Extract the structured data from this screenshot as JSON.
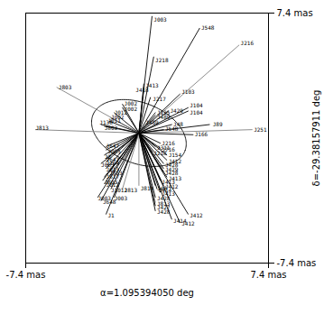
{
  "chart_data": {
    "type": "segments",
    "xlabel": "α=1.095394050 deg",
    "ylabel": "δ=-29.38157911 deg",
    "xlim": [
      -7.4,
      7.4
    ],
    "ylim": [
      -7.4,
      7.4
    ],
    "xticks": [
      {
        "value": -7.4,
        "label": "-7.4 mas"
      },
      {
        "value": 7.4,
        "label": "7.4 mas"
      }
    ],
    "yticks": [
      {
        "value": -7.4,
        "label": "-7.4 mas"
      },
      {
        "value": 7.4,
        "label": "7.4 mas"
      }
    ],
    "grid": false,
    "background_color": "#ffffff",
    "ellipse": {
      "cx": -0.5,
      "cy": 0.3,
      "a": 3.0,
      "b": 1.8,
      "angle_deg": -20,
      "color": "black"
    },
    "segments": [
      {
        "x1": -0.5,
        "y1": 0.3,
        "x2": 0.3,
        "y2": 7.2,
        "label": "J003",
        "label_x": 0.4,
        "label_y": 7.0,
        "color": "black"
      },
      {
        "x1": -0.5,
        "y1": 0.3,
        "x2": 0.4,
        "y2": 4.8,
        "label": "J218",
        "label_x": 0.5,
        "label_y": 4.6,
        "color": "black"
      },
      {
        "x1": -0.5,
        "y1": 0.3,
        "x2": -0.2,
        "y2": 3.2,
        "label": "J413",
        "label_x": -0.1,
        "label_y": 3.1,
        "color": "black"
      },
      {
        "x1": -0.5,
        "y1": 0.3,
        "x2": -0.2,
        "y2": 3.0,
        "label": "J418",
        "label_x": -0.7,
        "label_y": 2.85,
        "color": "black"
      },
      {
        "x1": -0.5,
        "y1": 0.3,
        "x2": 0.2,
        "y2": 2.4,
        "label": "J217",
        "label_x": 0.35,
        "label_y": 2.3,
        "color": "black"
      },
      {
        "x1": -0.5,
        "y1": 0.3,
        "x2": -1.5,
        "y2": 2.0,
        "label": "J002",
        "label_x": -1.4,
        "label_y": 2.0,
        "color": "black"
      },
      {
        "x1": -0.5,
        "y1": 0.3,
        "x2": -1.5,
        "y2": 1.8,
        "label": "J002",
        "label_x": -1.4,
        "label_y": 1.7,
        "color": "black"
      },
      {
        "x1": -0.5,
        "y1": 0.3,
        "x2": -2.0,
        "y2": 1.5,
        "label": "J012",
        "label_x": -2.0,
        "label_y": 1.5,
        "color": "black"
      },
      {
        "x1": -0.5,
        "y1": 0.3,
        "x2": -2.2,
        "y2": 1.2,
        "label": "J002",
        "label_x": -2.2,
        "label_y": 1.2,
        "color": "black"
      },
      {
        "x1": -0.5,
        "y1": 0.3,
        "x2": -2.3,
        "y2": 1.0,
        "label": "J011",
        "label_x": -2.4,
        "label_y": 1.0,
        "color": "black"
      },
      {
        "x1": -0.5,
        "y1": 0.3,
        "x2": 1.3,
        "y2": 1.6,
        "label": "J429",
        "label_x": 1.4,
        "label_y": 1.6,
        "color": "black"
      },
      {
        "x1": -0.5,
        "y1": 0.3,
        "x2": 2.0,
        "y2": 2.6,
        "label": "J103",
        "label_x": 2.1,
        "label_y": 2.7,
        "color": "black"
      },
      {
        "x1": -0.5,
        "y1": 0.3,
        "x2": 2.5,
        "y2": 1.8,
        "label": "J104",
        "label_x": 2.6,
        "label_y": 1.9,
        "color": "black"
      },
      {
        "x1": -0.5,
        "y1": 0.3,
        "x2": 2.5,
        "y2": 1.6,
        "label": "J104",
        "label_x": 2.6,
        "label_y": 1.5,
        "color": "black"
      },
      {
        "x1": -0.5,
        "y1": 0.3,
        "x2": 1.5,
        "y2": 0.8,
        "label": "J48",
        "label_x": 1.6,
        "label_y": 0.8,
        "color": "black"
      },
      {
        "x1": -0.5,
        "y1": 0.3,
        "x2": 3.8,
        "y2": 0.8,
        "label": "J89",
        "label_x": 4.0,
        "label_y": 0.8,
        "color": "black"
      },
      {
        "x1": -0.5,
        "y1": 0.3,
        "x2": 6.4,
        "y2": 0.5,
        "label": "J251",
        "label_x": 6.5,
        "label_y": 0.5,
        "color": "gray"
      },
      {
        "x1": -0.5,
        "y1": 0.3,
        "x2": 5.6,
        "y2": 5.5,
        "label": "J216",
        "label_x": 5.7,
        "label_y": 5.6,
        "color": "gray"
      },
      {
        "x1": -0.5,
        "y1": 0.3,
        "x2": 3.2,
        "y2": 6.5,
        "label": "J548",
        "label_x": 3.3,
        "label_y": 6.5,
        "color": "black"
      },
      {
        "x1": -0.5,
        "y1": 0.3,
        "x2": -5.5,
        "y2": 3.0,
        "label": "J803",
        "label_x": -5.4,
        "label_y": 3.0,
        "color": "gray"
      },
      {
        "x1": -0.5,
        "y1": 0.3,
        "x2": -6.8,
        "y2": 0.5,
        "label": "J813",
        "label_x": -6.8,
        "label_y": 0.6,
        "color": "gray"
      },
      {
        "x1": -0.5,
        "y1": 0.3,
        "x2": -2.8,
        "y2": 0.8,
        "label": "J138",
        "label_x": -2.9,
        "label_y": 0.9,
        "color": "black"
      },
      {
        "x1": -0.5,
        "y1": 0.3,
        "x2": -2.6,
        "y2": 0.7,
        "label": "J803",
        "label_x": -2.6,
        "label_y": 0.6,
        "color": "black"
      },
      {
        "x1": -0.5,
        "y1": 0.3,
        "x2": -2.5,
        "y2": -0.5,
        "label": "J647",
        "label_x": -2.5,
        "label_y": -0.5,
        "color": "black"
      },
      {
        "x1": -0.5,
        "y1": 0.3,
        "x2": -2.5,
        "y2": -0.7,
        "label": "J005",
        "label_x": -2.4,
        "label_y": -0.8,
        "color": "black"
      },
      {
        "x1": -0.5,
        "y1": 0.3,
        "x2": -2.6,
        "y2": -1.0,
        "label": "J2",
        "label_x": -2.6,
        "label_y": -1.1,
        "color": "black"
      },
      {
        "x1": -0.5,
        "y1": 0.3,
        "x2": -2.5,
        "y2": -1.2,
        "label": "J647",
        "label_x": -2.5,
        "label_y": -1.3,
        "color": "black"
      },
      {
        "x1": -0.5,
        "y1": 0.3,
        "x2": -2.5,
        "y2": -1.4,
        "label": "J164",
        "label_x": -2.5,
        "label_y": -1.5,
        "color": "black"
      },
      {
        "x1": -0.5,
        "y1": 0.3,
        "x2": -2.8,
        "y2": -1.5,
        "label": "J063",
        "label_x": -2.8,
        "label_y": -1.6,
        "color": "black"
      },
      {
        "x1": -0.5,
        "y1": 0.3,
        "x2": -2.5,
        "y2": -1.8,
        "label": "J013",
        "label_x": -2.5,
        "label_y": -1.9,
        "color": "black"
      },
      {
        "x1": -0.5,
        "y1": 0.3,
        "x2": -2.3,
        "y2": -2.0,
        "label": "J863",
        "label_x": -2.3,
        "label_y": -2.1,
        "color": "black"
      },
      {
        "x1": -0.5,
        "y1": 0.3,
        "x2": -2.6,
        "y2": -2.3,
        "label": "J817",
        "label_x": -2.5,
        "label_y": -2.3,
        "color": "black"
      },
      {
        "x1": -0.5,
        "y1": 0.3,
        "x2": -2.7,
        "y2": -2.5,
        "label": "J803",
        "label_x": -2.6,
        "label_y": -2.6,
        "color": "black"
      },
      {
        "x1": -0.5,
        "y1": 0.3,
        "x2": -2.6,
        "y2": -2.7,
        "label": "J012",
        "label_x": -2.5,
        "label_y": -2.8,
        "color": "black"
      },
      {
        "x1": -0.5,
        "y1": 0.3,
        "x2": -3.0,
        "y2": -3.5,
        "label": "J003",
        "label_x": -3.0,
        "label_y": -3.6,
        "color": "black"
      },
      {
        "x1": -0.5,
        "y1": 0.3,
        "x2": -2.8,
        "y2": -3.7,
        "label": "J648",
        "label_x": -2.7,
        "label_y": -3.8,
        "color": "black"
      },
      {
        "x1": -0.5,
        "y1": 0.3,
        "x2": -2.5,
        "y2": -4.5,
        "label": "J1",
        "label_x": -2.4,
        "label_y": -4.6,
        "color": "black"
      },
      {
        "x1": -0.5,
        "y1": 0.3,
        "x2": -2.0,
        "y2": -3.5,
        "label": "J003",
        "label_x": -2.0,
        "label_y": -3.6,
        "color": "black"
      },
      {
        "x1": -0.5,
        "y1": 0.3,
        "x2": -2.2,
        "y2": -3.0,
        "label": "J1012",
        "label_x": -2.2,
        "label_y": -3.1,
        "color": "black"
      },
      {
        "x1": -0.5,
        "y1": 0.3,
        "x2": -1.5,
        "y2": -3.0,
        "label": "J813",
        "label_x": -1.4,
        "label_y": -3.1,
        "color": "gray"
      },
      {
        "x1": -0.5,
        "y1": 0.3,
        "x2": -0.5,
        "y2": -2.8,
        "label": "J814",
        "label_x": -0.4,
        "label_y": -3.0,
        "color": "gray"
      },
      {
        "x1": -0.5,
        "y1": 0.3,
        "x2": 0.5,
        "y2": -2.8,
        "label": "J48",
        "label_x": 0.6,
        "label_y": -3.0,
        "color": "black"
      },
      {
        "x1": -0.5,
        "y1": 0.3,
        "x2": 0.3,
        "y2": -0.8,
        "label": "J218",
        "label_x": 0.4,
        "label_y": -0.9,
        "color": "black"
      },
      {
        "x1": -0.5,
        "y1": 0.3,
        "x2": 0.5,
        "y2": -0.5,
        "label": "J311",
        "label_x": 0.6,
        "label_y": -0.6,
        "color": "black"
      },
      {
        "x1": -0.5,
        "y1": 0.3,
        "x2": 0.8,
        "y2": -0.3,
        "label": "J216",
        "label_x": 0.9,
        "label_y": -0.3,
        "color": "black"
      },
      {
        "x1": -0.5,
        "y1": 0.3,
        "x2": 0.8,
        "y2": -0.6,
        "label": "J716",
        "label_x": 0.9,
        "label_y": -0.7,
        "color": "black"
      },
      {
        "x1": -0.5,
        "y1": 0.3,
        "x2": 1.2,
        "y2": -1.0,
        "label": "J154",
        "label_x": 1.3,
        "label_y": -1.0,
        "color": "black"
      },
      {
        "x1": -0.5,
        "y1": 0.3,
        "x2": 1.2,
        "y2": -1.3,
        "label": "J412",
        "label_x": 1.3,
        "label_y": -1.4,
        "color": "black"
      },
      {
        "x1": -0.5,
        "y1": 0.3,
        "x2": 1.0,
        "y2": -1.5,
        "label": "J428",
        "label_x": 1.1,
        "label_y": -1.6,
        "color": "black"
      },
      {
        "x1": -0.5,
        "y1": 0.3,
        "x2": 1.0,
        "y2": -1.8,
        "label": "J429",
        "label_x": 1.1,
        "label_y": -1.9,
        "color": "black"
      },
      {
        "x1": -0.5,
        "y1": 0.3,
        "x2": 1.0,
        "y2": -2.0,
        "label": "J428",
        "label_x": 1.1,
        "label_y": -2.1,
        "color": "black"
      },
      {
        "x1": -0.5,
        "y1": 0.3,
        "x2": 1.2,
        "y2": -2.3,
        "label": "J413",
        "label_x": 1.3,
        "label_y": -2.4,
        "color": "black"
      },
      {
        "x1": -0.5,
        "y1": 0.3,
        "x2": 0.8,
        "y2": -2.5,
        "label": "J413",
        "label_x": 0.9,
        "label_y": -2.6,
        "color": "black"
      },
      {
        "x1": -0.5,
        "y1": 0.3,
        "x2": 1.0,
        "y2": -2.8,
        "label": "J412",
        "label_x": 1.1,
        "label_y": -2.9,
        "color": "black"
      },
      {
        "x1": -0.5,
        "y1": 0.3,
        "x2": 0.6,
        "y2": -3.0,
        "label": "J414",
        "label_x": 0.7,
        "label_y": -3.1,
        "color": "black"
      },
      {
        "x1": -0.5,
        "y1": 0.3,
        "x2": 0.8,
        "y2": -3.2,
        "label": "J413",
        "label_x": 0.9,
        "label_y": -3.3,
        "color": "black"
      },
      {
        "x1": -0.5,
        "y1": 0.3,
        "x2": 0.5,
        "y2": -3.5,
        "label": "J428",
        "label_x": 0.6,
        "label_y": -3.6,
        "color": "black"
      },
      {
        "x1": -0.5,
        "y1": 0.3,
        "x2": 0.5,
        "y2": -3.8,
        "label": "J813",
        "label_x": 0.6,
        "label_y": -3.9,
        "color": "gray"
      },
      {
        "x1": -0.5,
        "y1": 0.3,
        "x2": 0.5,
        "y2": -4.0,
        "label": "J427",
        "label_x": 0.6,
        "label_y": -4.1,
        "color": "black"
      },
      {
        "x1": -0.5,
        "y1": 0.3,
        "x2": 0.5,
        "y2": -4.3,
        "label": "J428",
        "label_x": 0.6,
        "label_y": -4.4,
        "color": "black"
      },
      {
        "x1": -0.5,
        "y1": 0.3,
        "x2": 2.0,
        "y2": -5.0,
        "label": "J412",
        "label_x": 2.1,
        "label_y": -5.1,
        "color": "black"
      },
      {
        "x1": -0.5,
        "y1": 0.3,
        "x2": 1.5,
        "y2": -4.8,
        "label": "J414",
        "label_x": 1.6,
        "label_y": -4.9,
        "color": "black"
      },
      {
        "x1": -0.5,
        "y1": 0.3,
        "x2": 2.5,
        "y2": -4.5,
        "label": "J412",
        "label_x": 2.6,
        "label_y": -4.6,
        "color": "black"
      },
      {
        "x1": -0.5,
        "y1": 0.3,
        "x2": -0.5,
        "y2": 0.3,
        "label": "J489",
        "label_x": -0.1,
        "label_y": 0.9,
        "color": "black"
      },
      {
        "x1": -0.5,
        "y1": 0.3,
        "x2": 1.0,
        "y2": 0.5,
        "label": "J548",
        "label_x": 1.1,
        "label_y": 0.55,
        "color": "black"
      },
      {
        "x1": -0.5,
        "y1": 0.3,
        "x2": 2.8,
        "y2": 0.2,
        "label": "J166",
        "label_x": 2.9,
        "label_y": 0.2,
        "color": "black"
      },
      {
        "x1": -0.5,
        "y1": 0.3,
        "x2": 0.5,
        "y2": 1.5,
        "label": "J125",
        "label_x": 0.6,
        "label_y": 1.5,
        "color": "black"
      },
      {
        "x1": -0.5,
        "y1": 0.3,
        "x2": 0.5,
        "y2": 1.35,
        "label": "J489",
        "label_x": 0.6,
        "label_y": 1.25,
        "color": "black"
      }
    ]
  }
}
